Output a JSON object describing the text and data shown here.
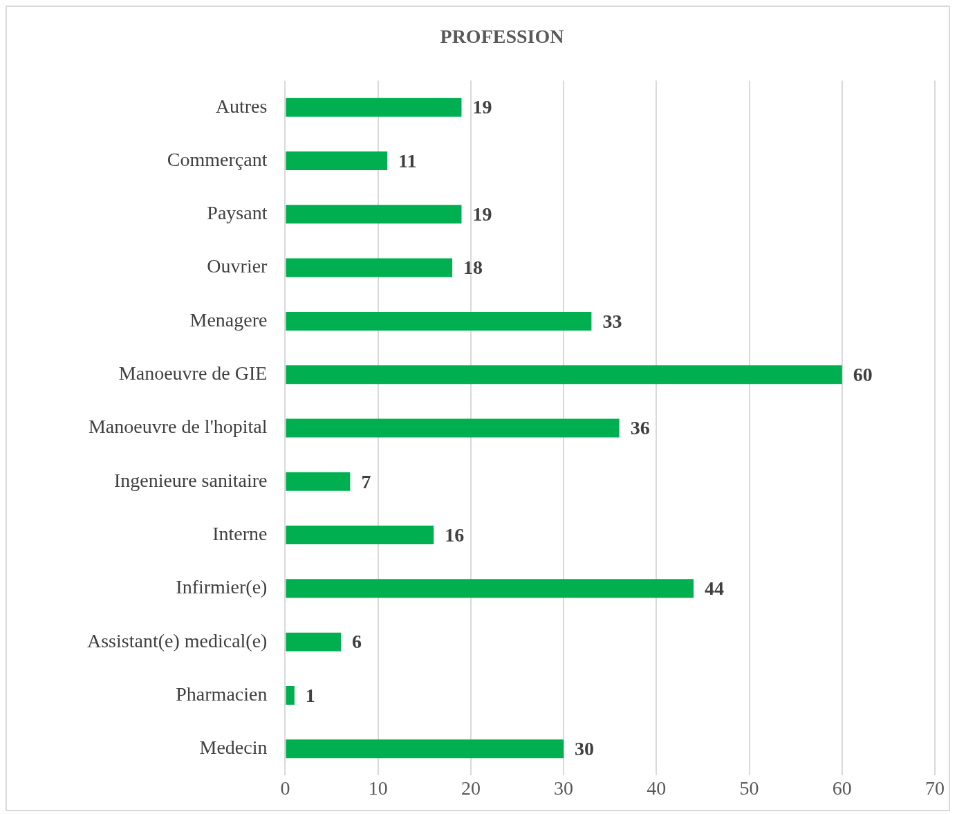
{
  "chart_data": {
    "type": "bar",
    "orientation": "horizontal",
    "title": "PROFESSION",
    "categories": [
      "Autres",
      "Commerçant",
      "Paysant",
      "Ouvrier",
      "Menagere",
      "Manoeuvre de GIE",
      "Manoeuvre de l'hopital",
      "Ingenieure sanitaire",
      "Interne",
      "Infirmier(e)",
      "Assistant(e) medical(e)",
      "Pharmacien",
      "Medecin"
    ],
    "values": [
      19,
      11,
      19,
      18,
      33,
      60,
      36,
      7,
      16,
      44,
      6,
      1,
      30
    ],
    "color": "#00b050",
    "xlim": [
      0,
      70
    ],
    "xticks": [
      0,
      10,
      20,
      30,
      40,
      50,
      60,
      70
    ],
    "grid": "x",
    "data_labels": true
  }
}
